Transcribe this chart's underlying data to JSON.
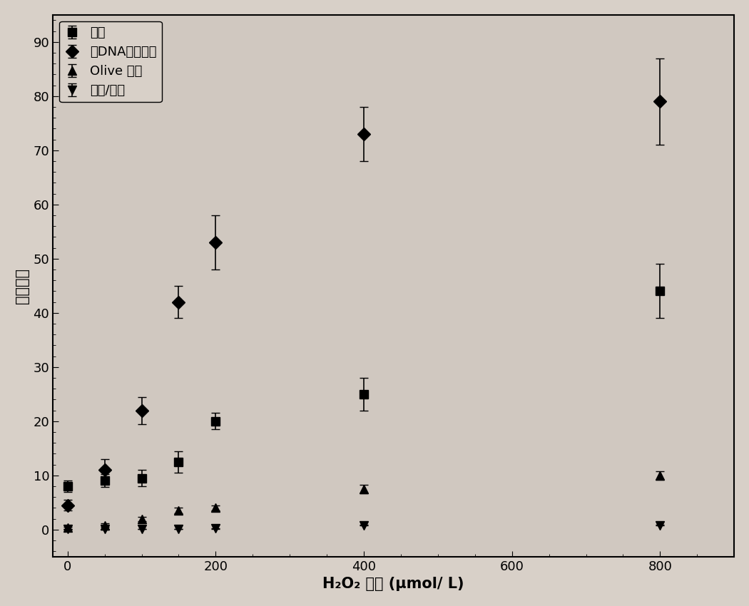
{
  "xlabel": "H₂O₂ 浓度 (μmol/ L)",
  "ylabel": "相对单位",
  "xlim": [
    -20,
    900
  ],
  "ylim": [
    -5,
    95
  ],
  "xticks": [
    0,
    200,
    400,
    600,
    800
  ],
  "yticks": [
    0,
    10,
    20,
    30,
    40,
    50,
    60,
    70,
    80,
    90
  ],
  "series": [
    {
      "label": "尾长",
      "marker": "s",
      "x": [
        0,
        50,
        100,
        150,
        200,
        400,
        800
      ],
      "y": [
        8.0,
        9.0,
        9.5,
        12.5,
        20.0,
        25.0,
        44.0
      ],
      "yerr": [
        1.0,
        1.2,
        1.5,
        2.0,
        1.5,
        3.0,
        5.0
      ]
    },
    {
      "label": "尾DNA百分含量",
      "marker": "D",
      "x": [
        0,
        50,
        100,
        150,
        200,
        400,
        800
      ],
      "y": [
        4.5,
        11.0,
        22.0,
        42.0,
        53.0,
        73.0,
        79.0
      ],
      "yerr": [
        1.0,
        2.0,
        2.5,
        3.0,
        5.0,
        5.0,
        8.0
      ]
    },
    {
      "label": "Olive 尾矩",
      "marker": "^",
      "x": [
        0,
        50,
        100,
        150,
        200,
        400,
        800
      ],
      "y": [
        0.3,
        0.8,
        2.0,
        3.5,
        4.0,
        7.5,
        10.0
      ],
      "yerr": [
        0.2,
        0.3,
        0.4,
        0.5,
        0.5,
        0.8,
        0.8
      ]
    },
    {
      "label": "尾长/头长",
      "marker": "v",
      "x": [
        0,
        50,
        100,
        150,
        200,
        400,
        800
      ],
      "y": [
        0.05,
        0.05,
        0.1,
        0.1,
        0.2,
        0.8,
        0.8
      ],
      "yerr": [
        0.03,
        0.03,
        0.05,
        0.05,
        0.05,
        0.1,
        0.1
      ]
    }
  ],
  "fit_x_start": 0,
  "fit_x_end": 900,
  "background_color": "#d8d0c8",
  "plot_bg_color": "#d0c8c0",
  "marker_size": 9,
  "font_size": 15,
  "legend_fontsize": 13,
  "tick_fontsize": 13
}
